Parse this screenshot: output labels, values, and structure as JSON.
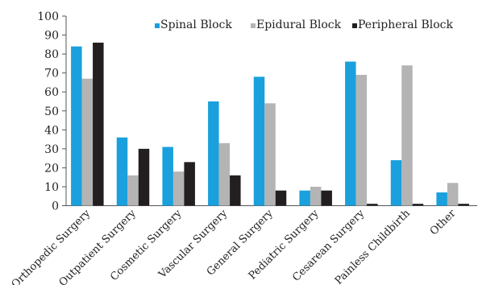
{
  "chart_data": {
    "type": "bar",
    "categories": [
      "Orthopedic Surgery",
      "Outpatient Surgery",
      "Cosmetic Surgery",
      "Vascular Surgery",
      "General Surgery",
      "Pediatric Surgery",
      "Cesarean Surgery",
      "Painless Childbirth",
      "Other"
    ],
    "series": [
      {
        "name": "Spinal Block",
        "color": "#1aa0dc",
        "values": [
          84,
          36,
          31,
          55,
          68,
          8,
          76,
          24,
          7
        ]
      },
      {
        "name": "Epidural Block",
        "color": "#b4b4b4",
        "values": [
          67,
          16,
          18,
          33,
          54,
          10,
          69,
          74,
          12
        ]
      },
      {
        "name": "Peripheral Block",
        "color": "#231f20",
        "values": [
          86,
          30,
          23,
          16,
          8,
          8,
          1,
          1,
          1
        ]
      }
    ],
    "ylim": [
      0,
      100
    ],
    "yticks": [
      "0",
      "10",
      "20",
      "30",
      "40",
      "50",
      "60",
      "70",
      "80",
      "90",
      "100"
    ],
    "grid": false,
    "legend_position": "top"
  }
}
